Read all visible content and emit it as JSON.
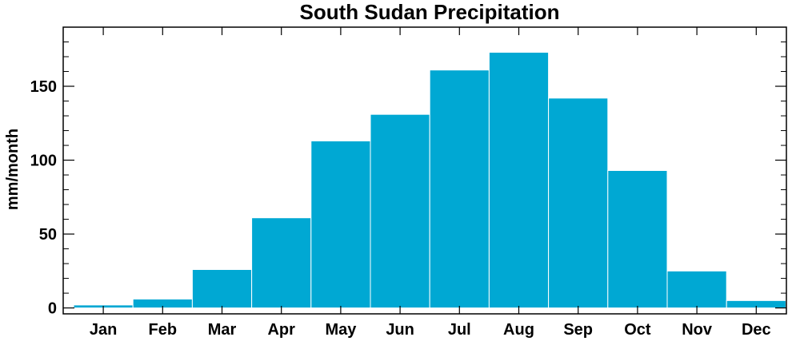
{
  "chart_data": {
    "type": "bar",
    "title": "South Sudan Precipitation",
    "xlabel": "",
    "ylabel": "mm/month",
    "categories": [
      "Jan",
      "Feb",
      "Mar",
      "Apr",
      "May",
      "Jun",
      "Jul",
      "Aug",
      "Sep",
      "Oct",
      "Nov",
      "Dec"
    ],
    "values": [
      2,
      6,
      26,
      61,
      113,
      131,
      161,
      173,
      142,
      93,
      25,
      5
    ],
    "ylim": [
      -4,
      190
    ],
    "yticks": [
      0,
      50,
      100,
      150
    ],
    "ytick_labels": [
      "0",
      "50",
      "100",
      "150"
    ],
    "bar_color": "#00a8d3",
    "grid": false,
    "legend": "none"
  }
}
